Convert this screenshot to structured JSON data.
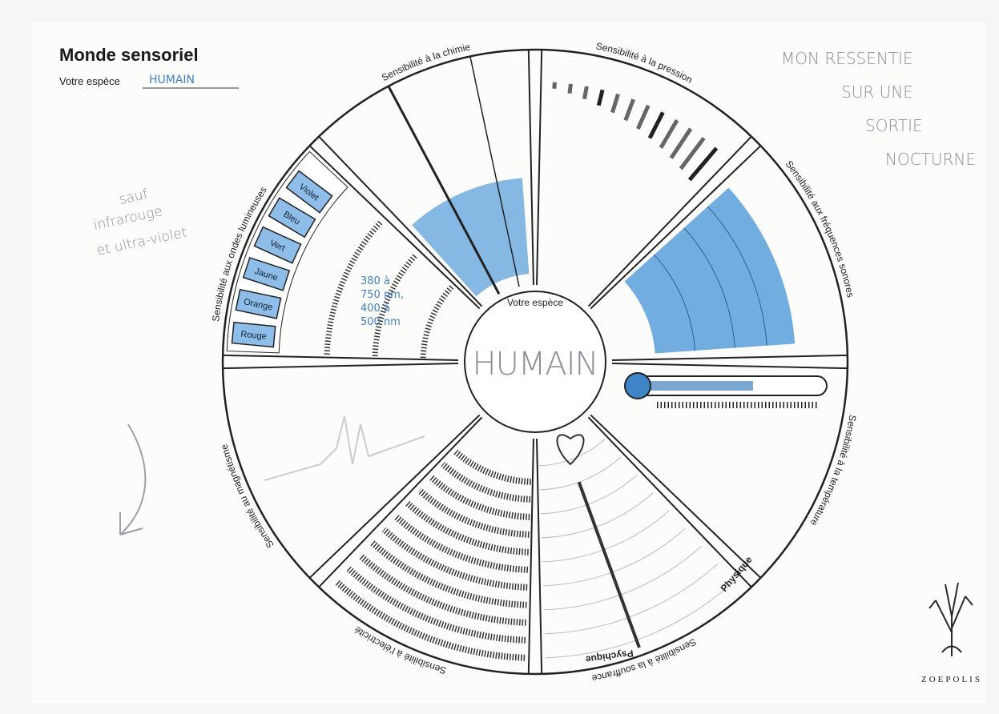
{
  "header": {
    "title": "Monde sensoriel",
    "species_label": "Votre espèce",
    "species_value": "HUMAIN"
  },
  "notes": {
    "right": [
      "MON RESSENTIE",
      "SUR UNE",
      "SORTIE",
      "NOCTURNE"
    ],
    "left": [
      "sauf",
      "infrarouge",
      "et ultra-violet"
    ],
    "light_range": [
      "380 à",
      "750 nm,",
      "400 à",
      "500 nm"
    ]
  },
  "wheel": {
    "center": "HUMAIN",
    "center_caption": "Votre espèce",
    "sectors": [
      "Sensibilité à la chimie",
      "Sensibilité à la pression",
      "Sensibilité aux fréquences sonores",
      "Sensibilité à la température",
      "Sensibilité à la souffrance",
      "Sensibilité à l'électricité",
      "Sensibilité au magnétisme",
      "Sensibilité aux ondes lumineuses"
    ],
    "colors": [
      "Violet",
      "Bleu",
      "Vert",
      "Jaune",
      "Orange",
      "Rouge"
    ],
    "pain_labels": [
      "Physique",
      "Psychique"
    ]
  },
  "logo": "ZOEPOLIS"
}
